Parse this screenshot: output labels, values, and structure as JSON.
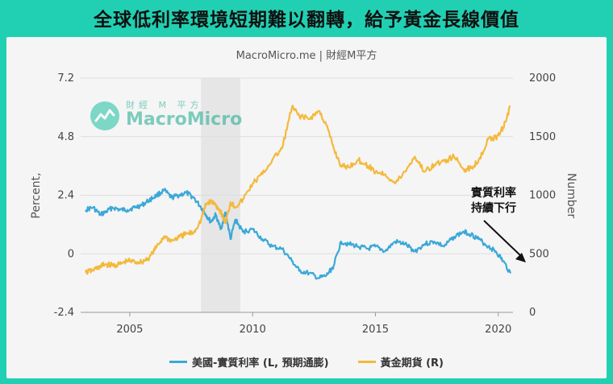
{
  "headline": "全球低利率環境短期難以翻轉，給予黃金長線價值",
  "source": "MacroMicro.me | 財經M平方",
  "watermark": {
    "small": "財經 M 平方",
    "big": "MacroMicro"
  },
  "annotation": [
    "實質利率",
    "持續下行"
  ],
  "colors": {
    "real_rate": "#3aa8d8",
    "gold": "#f4b93c",
    "recession": "#e6e6e6",
    "arrow": "#111111"
  },
  "chart_data": {
    "type": "line",
    "left_axis": {
      "label": "Percent,",
      "ticks": [
        "7.2",
        "4.8",
        "2.4",
        "0",
        "-2.4"
      ],
      "range": [
        -2.4,
        7.2
      ]
    },
    "right_axis": {
      "label": "Number",
      "ticks": [
        "2000",
        "1500",
        "1000",
        "500",
        "0"
      ],
      "range": [
        0,
        2000
      ]
    },
    "x_axis": {
      "ticks": [
        "2005",
        "2010",
        "2015",
        "2020"
      ],
      "range": [
        2003,
        2020.6
      ]
    },
    "shaded_period": [
      2007.9,
      2009.5
    ],
    "grid": true,
    "legend_placement": "bottom",
    "series": [
      {
        "name": "美國-實質利率 (L, 預期通膨)",
        "axis": "left",
        "x": [
          2003.2,
          2003.5,
          2003.8,
          2004.0,
          2004.3,
          2004.6,
          2004.9,
          2005.2,
          2005.5,
          2005.8,
          2006.1,
          2006.4,
          2006.7,
          2007.0,
          2007.3,
          2007.6,
          2007.9,
          2008.1,
          2008.3,
          2008.5,
          2008.7,
          2008.9,
          2009.1,
          2009.3,
          2009.6,
          2010.0,
          2010.4,
          2010.8,
          2011.2,
          2011.6,
          2011.9,
          2012.3,
          2012.7,
          2013.0,
          2013.3,
          2013.6,
          2013.9,
          2014.3,
          2014.7,
          2015.0,
          2015.4,
          2015.8,
          2016.2,
          2016.6,
          2017.0,
          2017.4,
          2017.8,
          2018.2,
          2018.6,
          2018.9,
          2019.2,
          2019.6,
          2019.9,
          2020.2,
          2020.5
        ],
        "values": [
          1.8,
          1.9,
          1.6,
          1.7,
          1.9,
          1.8,
          1.8,
          1.9,
          2.0,
          2.2,
          2.4,
          2.6,
          2.3,
          2.4,
          2.5,
          2.3,
          1.9,
          1.6,
          1.3,
          1.6,
          1.0,
          1.7,
          0.6,
          1.4,
          0.9,
          1.0,
          0.6,
          0.3,
          0.2,
          -0.3,
          -0.7,
          -0.8,
          -1.0,
          -0.9,
          -0.5,
          0.5,
          0.4,
          0.3,
          0.2,
          0.3,
          0.1,
          0.5,
          0.4,
          0.1,
          0.4,
          0.5,
          0.3,
          0.7,
          0.9,
          0.8,
          0.6,
          0.3,
          0.1,
          -0.3,
          -0.8
        ]
      },
      {
        "name": "黃金期貨 (R)",
        "axis": "right",
        "x": [
          2003.2,
          2003.5,
          2003.8,
          2004.0,
          2004.3,
          2004.6,
          2004.9,
          2005.2,
          2005.5,
          2005.8,
          2006.1,
          2006.4,
          2006.7,
          2007.0,
          2007.3,
          2007.6,
          2007.9,
          2008.1,
          2008.3,
          2008.5,
          2008.7,
          2008.9,
          2009.1,
          2009.3,
          2009.6,
          2010.0,
          2010.4,
          2010.8,
          2011.2,
          2011.6,
          2011.9,
          2012.3,
          2012.7,
          2013.0,
          2013.3,
          2013.6,
          2013.9,
          2014.3,
          2014.7,
          2015.0,
          2015.4,
          2015.8,
          2016.2,
          2016.6,
          2017.0,
          2017.4,
          2017.8,
          2018.2,
          2018.6,
          2018.9,
          2019.2,
          2019.6,
          2019.9,
          2020.2,
          2020.5
        ],
        "values": [
          340,
          360,
          390,
          410,
          400,
          410,
          440,
          430,
          430,
          470,
          560,
          650,
          610,
          640,
          670,
          680,
          790,
          920,
          950,
          920,
          860,
          760,
          940,
          900,
          960,
          1100,
          1180,
          1300,
          1400,
          1750,
          1680,
          1650,
          1720,
          1600,
          1400,
          1250,
          1240,
          1300,
          1250,
          1200,
          1180,
          1100,
          1200,
          1330,
          1200,
          1260,
          1290,
          1330,
          1220,
          1230,
          1300,
          1480,
          1490,
          1580,
          1760
        ]
      }
    ]
  }
}
